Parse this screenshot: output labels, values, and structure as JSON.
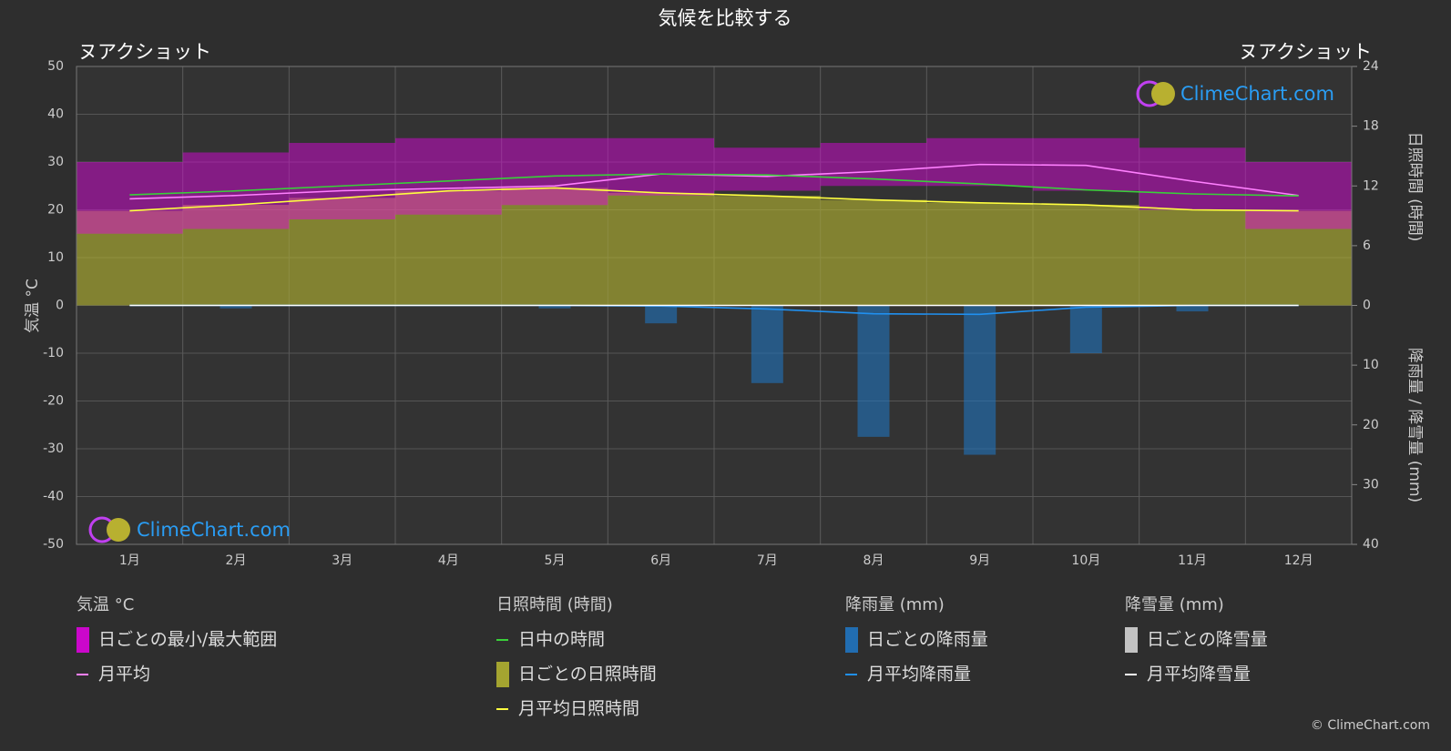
{
  "chart_data": {
    "type": "climate",
    "title": "気候を比較する",
    "location_left": "ヌアクショット",
    "location_right": "ヌアクショット",
    "watermark": "ClimeChart.com",
    "copyright": "© ClimeChart.com",
    "categories": [
      "1月",
      "2月",
      "3月",
      "4月",
      "5月",
      "6月",
      "7月",
      "8月",
      "9月",
      "10月",
      "11月",
      "12月"
    ],
    "ylabel": "気温 °C",
    "ylim": [
      -50,
      50
    ],
    "yticks": [
      -50,
      -40,
      -30,
      -20,
      -10,
      0,
      10,
      20,
      30,
      40,
      50
    ],
    "y2label": "日照時間 (時間)",
    "y2lim": [
      0,
      24
    ],
    "y2ticks": [
      0,
      6,
      12,
      18,
      24
    ],
    "y3label": "降雨量 / 降雪量 (mm)",
    "y3lim": [
      0,
      40
    ],
    "y3ticks": [
      10,
      20,
      30,
      40
    ],
    "grid": true,
    "groups": [
      {
        "title": "気温 °C",
        "axis": "y",
        "series": [
          {
            "name": "日ごとの最小/最大範囲",
            "kind": "range",
            "color": "#e600e6",
            "min": [
              15,
              16,
              18,
              19,
              21,
              23,
              24,
              25,
              25,
              24,
              20,
              16
            ],
            "max": [
              30,
              32,
              34,
              35,
              35,
              35,
              33,
              34,
              35,
              35,
              33,
              30
            ]
          },
          {
            "name": "月平均",
            "kind": "line",
            "color": "#ff80ff",
            "values": [
              22.3,
              23,
              24,
              24.5,
              25,
              27.5,
              27,
              28,
              29.5,
              29.3,
              26,
              23
            ]
          }
        ]
      },
      {
        "title": "日照時間 (時間)",
        "axis": "y2",
        "series": [
          {
            "name": "日中の時間",
            "kind": "line",
            "color": "#39d039",
            "values": [
              11.1,
              11.5,
              12.0,
              12.5,
              13.0,
              13.2,
              13.1,
              12.7,
              12.2,
              11.6,
              11.2,
              11.0
            ]
          },
          {
            "name": "日ごとの日照時間",
            "kind": "area",
            "color": "#b8b830",
            "values": [
              9.5,
              10.1,
              10.8,
              11.5,
              11.8,
              11.3,
              11.0,
              10.6,
              10.3,
              10.1,
              9.6,
              9.5
            ]
          },
          {
            "name": "月平均日照時間",
            "kind": "line",
            "color": "#ffff40",
            "values": [
              9.5,
              10.1,
              10.8,
              11.5,
              11.8,
              11.3,
              11.0,
              10.6,
              10.3,
              10.1,
              9.6,
              9.5
            ]
          }
        ]
      },
      {
        "title": "降雨量 (mm)",
        "axis": "y3",
        "series": [
          {
            "name": "日ごとの降雨量",
            "kind": "bar",
            "color": "#1e78c8",
            "values": [
              0,
              0.5,
              0,
              0,
              0.5,
              3,
              13,
              22,
              25,
              8,
              1,
              0
            ]
          },
          {
            "name": "月平均降雨量",
            "kind": "line",
            "color": "#2090f0",
            "values": [
              0,
              0,
              0,
              0,
              0,
              0.1,
              0.6,
              1.4,
              1.5,
              0.3,
              0,
              0
            ]
          }
        ]
      },
      {
        "title": "降雪量 (mm)",
        "axis": "y3",
        "series": [
          {
            "name": "日ごとの降雪量",
            "kind": "bar",
            "color": "#dddddd",
            "values": [
              0,
              0,
              0,
              0,
              0,
              0,
              0,
              0,
              0,
              0,
              0,
              0
            ]
          },
          {
            "name": "月平均降雪量",
            "kind": "line",
            "color": "#ffffff",
            "values": [
              0,
              0,
              0,
              0,
              0,
              0,
              0,
              0,
              0,
              0,
              0,
              0
            ]
          }
        ]
      }
    ]
  }
}
